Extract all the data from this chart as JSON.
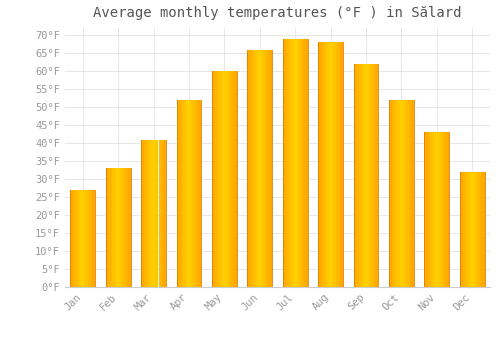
{
  "title": "Average monthly temperatures (°F ) in Sălard",
  "months": [
    "Jan",
    "Feb",
    "Mar",
    "Apr",
    "May",
    "Jun",
    "Jul",
    "Aug",
    "Sep",
    "Oct",
    "Nov",
    "Dec"
  ],
  "values": [
    27,
    33,
    41,
    52,
    60,
    66,
    69,
    68,
    62,
    52,
    43,
    32
  ],
  "bar_color_center": "#FFB300",
  "bar_color_edge": "#FFA000",
  "background_color": "#FFFFFF",
  "grid_color": "#DDDDDD",
  "text_color": "#999999",
  "title_color": "#555555",
  "ylim": [
    0,
    72
  ],
  "yticks": [
    0,
    5,
    10,
    15,
    20,
    25,
    30,
    35,
    40,
    45,
    50,
    55,
    60,
    65,
    70
  ],
  "ylabel_suffix": "°F",
  "title_fontsize": 10,
  "tick_fontsize": 7.5,
  "bar_width": 0.7
}
